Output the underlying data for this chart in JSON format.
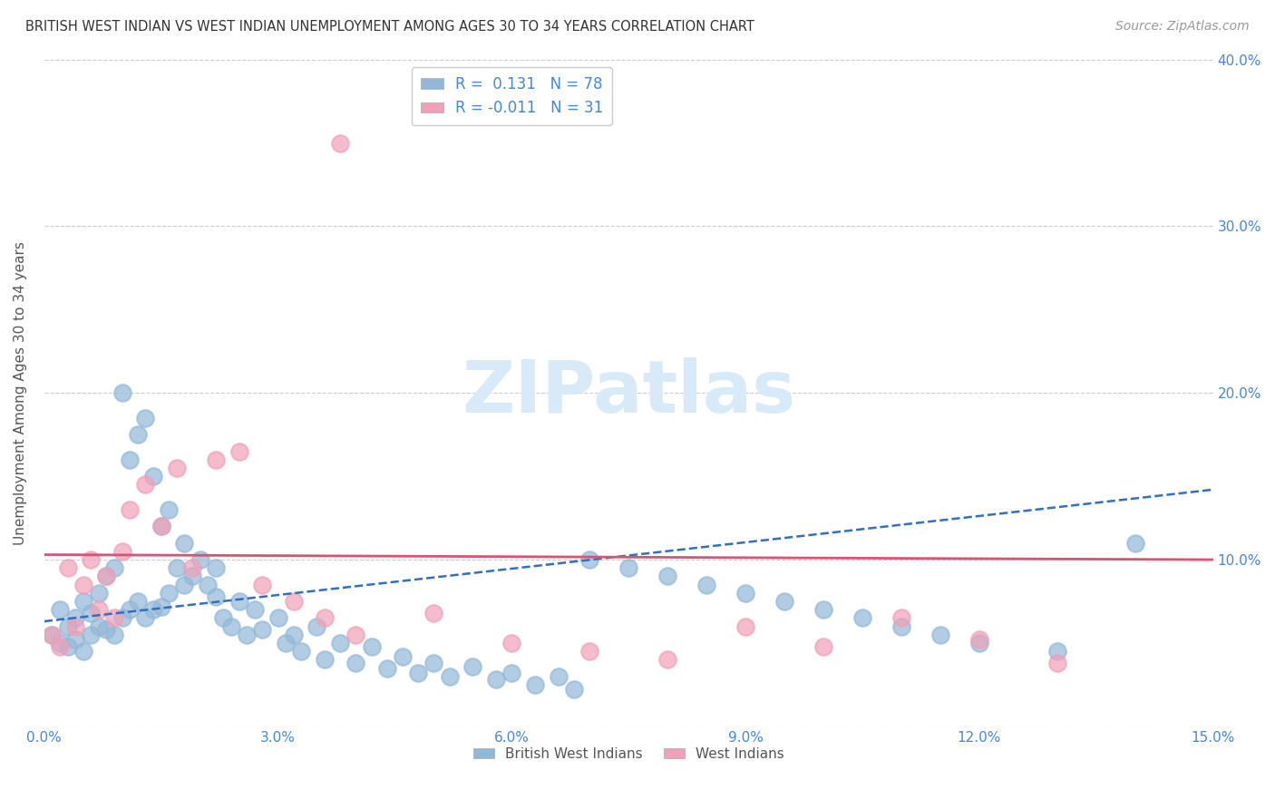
{
  "title": "BRITISH WEST INDIAN VS WEST INDIAN UNEMPLOYMENT AMONG AGES 30 TO 34 YEARS CORRELATION CHART",
  "source": "Source: ZipAtlas.com",
  "ylabel": "Unemployment Among Ages 30 to 34 years",
  "xlim": [
    0,
    0.15
  ],
  "ylim": [
    0,
    0.4
  ],
  "xticks": [
    0.0,
    0.03,
    0.06,
    0.09,
    0.12,
    0.15
  ],
  "yticks": [
    0.0,
    0.1,
    0.2,
    0.3,
    0.4
  ],
  "xtick_labels": [
    "0.0%",
    "3.0%",
    "6.0%",
    "9.0%",
    "12.0%",
    "15.0%"
  ],
  "ytick_labels_right": [
    "",
    "10.0%",
    "20.0%",
    "30.0%",
    "40.0%"
  ],
  "r_blue": 0.131,
  "n_blue": 78,
  "r_pink": -0.011,
  "n_pink": 31,
  "blue_color": "#92b8d8",
  "pink_color": "#f0a0b8",
  "blue_line_color": "#3070c0",
  "pink_line_color": "#e05070",
  "axis_color": "#4488dd",
  "watermark_color": "#d8eaf8",
  "background_color": "#ffffff",
  "blue_line_start_y": 0.063,
  "blue_line_end_y": 0.142,
  "pink_line_start_y": 0.103,
  "pink_line_end_y": 0.1,
  "blue_scatter_x": [
    0.001,
    0.002,
    0.002,
    0.003,
    0.003,
    0.004,
    0.004,
    0.005,
    0.005,
    0.006,
    0.006,
    0.007,
    0.007,
    0.008,
    0.008,
    0.009,
    0.009,
    0.01,
    0.01,
    0.011,
    0.011,
    0.012,
    0.012,
    0.013,
    0.013,
    0.014,
    0.014,
    0.015,
    0.015,
    0.016,
    0.016,
    0.017,
    0.018,
    0.018,
    0.019,
    0.02,
    0.021,
    0.022,
    0.022,
    0.023,
    0.024,
    0.025,
    0.026,
    0.027,
    0.028,
    0.03,
    0.031,
    0.032,
    0.033,
    0.035,
    0.036,
    0.038,
    0.04,
    0.042,
    0.044,
    0.046,
    0.048,
    0.05,
    0.052,
    0.055,
    0.058,
    0.06,
    0.063,
    0.066,
    0.068,
    0.07,
    0.075,
    0.08,
    0.085,
    0.09,
    0.095,
    0.1,
    0.105,
    0.11,
    0.115,
    0.12,
    0.13,
    0.14
  ],
  "blue_scatter_y": [
    0.055,
    0.05,
    0.07,
    0.048,
    0.06,
    0.052,
    0.065,
    0.045,
    0.075,
    0.055,
    0.068,
    0.06,
    0.08,
    0.058,
    0.09,
    0.055,
    0.095,
    0.065,
    0.2,
    0.07,
    0.16,
    0.075,
    0.175,
    0.065,
    0.185,
    0.07,
    0.15,
    0.072,
    0.12,
    0.08,
    0.13,
    0.095,
    0.085,
    0.11,
    0.09,
    0.1,
    0.085,
    0.095,
    0.078,
    0.065,
    0.06,
    0.075,
    0.055,
    0.07,
    0.058,
    0.065,
    0.05,
    0.055,
    0.045,
    0.06,
    0.04,
    0.05,
    0.038,
    0.048,
    0.035,
    0.042,
    0.032,
    0.038,
    0.03,
    0.036,
    0.028,
    0.032,
    0.025,
    0.03,
    0.022,
    0.1,
    0.095,
    0.09,
    0.085,
    0.08,
    0.075,
    0.07,
    0.065,
    0.06,
    0.055,
    0.05,
    0.045,
    0.11
  ],
  "pink_scatter_x": [
    0.001,
    0.002,
    0.003,
    0.004,
    0.005,
    0.006,
    0.007,
    0.008,
    0.009,
    0.01,
    0.011,
    0.013,
    0.015,
    0.017,
    0.019,
    0.022,
    0.025,
    0.028,
    0.032,
    0.036,
    0.04,
    0.05,
    0.06,
    0.07,
    0.08,
    0.09,
    0.1,
    0.11,
    0.12,
    0.13,
    0.038
  ],
  "pink_scatter_y": [
    0.055,
    0.048,
    0.095,
    0.06,
    0.085,
    0.1,
    0.07,
    0.09,
    0.065,
    0.105,
    0.13,
    0.145,
    0.12,
    0.155,
    0.095,
    0.16,
    0.165,
    0.085,
    0.075,
    0.065,
    0.055,
    0.068,
    0.05,
    0.045,
    0.04,
    0.06,
    0.048,
    0.065,
    0.052,
    0.038,
    0.35
  ]
}
